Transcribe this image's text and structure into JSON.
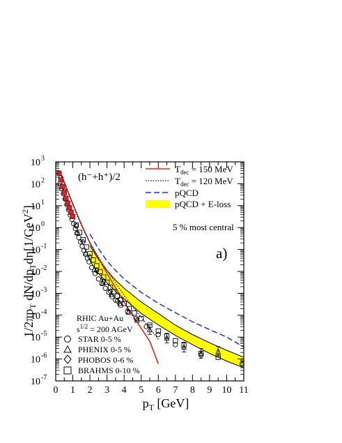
{
  "chart_data": {
    "type": "scatter",
    "title": "",
    "xlabel": "p",
    "xlabel_sub": "T",
    "xlabel_unit": "[GeV]",
    "ylabel": "1/2πp_T dN/dp_Tdη[1/GeV²]",
    "ylabel_parts": [
      "1/2πp",
      "T",
      " dN/dp",
      "T",
      "dη[1/GeV",
      "2",
      "]"
    ],
    "xlim": [
      0,
      11
    ],
    "ylim": [
      1e-07,
      1000
    ],
    "yscale": "log",
    "xticks": [
      "0",
      "1",
      "2",
      "3",
      "4",
      "5",
      "6",
      "7",
      "8",
      "9",
      "10",
      "11"
    ],
    "yticks": [
      {
        "base": "10",
        "exp": "-7"
      },
      {
        "base": "10",
        "exp": "-6"
      },
      {
        "base": "10",
        "exp": "-5"
      },
      {
        "base": "10",
        "exp": "-4"
      },
      {
        "base": "10",
        "exp": "-3"
      },
      {
        "base": "10",
        "exp": "-2"
      },
      {
        "base": "10",
        "exp": "-1"
      },
      {
        "base": "10",
        "exp": "0"
      },
      {
        "base": "10",
        "exp": "1"
      },
      {
        "base": "10",
        "exp": "2"
      },
      {
        "base": "10",
        "exp": "3"
      }
    ],
    "annotations": {
      "particle": "(h⁻+h⁺)/2",
      "centrality": "5 % most central",
      "panel": "a)",
      "system_line1": "RHIC Au+Au",
      "system_line2_pre": "s",
      "system_line2_sup": "1/2",
      "system_line2_post": " = 200 AGeV"
    },
    "legend_top": [
      {
        "label_pre": "T",
        "label_sub": "dec",
        "label_post": " = 150 MeV",
        "style": "solid",
        "color": "#e8231e"
      },
      {
        "label_pre": "T",
        "label_sub": "dec",
        "label_post": " = 120 MeV",
        "style": "dotted",
        "color": "#000000"
      },
      {
        "label_pre": "pQCD",
        "label_sub": "",
        "label_post": "",
        "style": "dashed",
        "color": "#2130d8"
      },
      {
        "label_pre": "pQCD + E-loss",
        "label_sub": "",
        "label_post": "",
        "style": "band",
        "color": "#ffff00"
      }
    ],
    "legend_bottom": [
      {
        "label": "STAR 0-5 %",
        "marker": "circle"
      },
      {
        "label": "PHENIX 0-5 %",
        "marker": "triangle"
      },
      {
        "label": "PHOBOS 0-6 %",
        "marker": "diamond"
      },
      {
        "label": "BRAHMS 0-10 %",
        "marker": "square"
      }
    ],
    "series": [
      {
        "name": "T_dec = 150 MeV",
        "kind": "line",
        "color": "#e8231e",
        "x": [
          0.2,
          0.5,
          1.0,
          1.5,
          2.0,
          2.5,
          3.0,
          3.5,
          4.0,
          4.5,
          5.0,
          5.5,
          6.0
        ],
        "y": [
          400,
          120,
          12,
          1.4,
          0.2,
          0.04,
          0.008,
          0.0018,
          0.0004,
          0.0001,
          2.5e-05,
          6.5e-06,
          6e-07
        ]
      },
      {
        "name": "T_dec = 120 MeV",
        "kind": "dotted",
        "color": "#000000",
        "x": [
          0.2,
          0.5,
          1.0,
          1.5,
          2.0,
          2.5,
          3.0,
          3.5,
          4.0,
          4.5,
          5.0,
          5.5,
          6.0
        ],
        "y": [
          380,
          110,
          11,
          1.3,
          0.2,
          0.045,
          0.011,
          0.003,
          0.0008,
          0.00025,
          8e-05,
          2.5e-05,
          8e-06
        ]
      },
      {
        "name": "pQCD",
        "kind": "dashed",
        "color": "#2130d8",
        "x": [
          2.0,
          2.5,
          3.0,
          3.5,
          4.0,
          5.0,
          6.0,
          7.0,
          8.0,
          9.0,
          10.0,
          11.0
        ],
        "y": [
          0.5,
          0.11,
          0.03,
          0.011,
          0.0045,
          0.0011,
          0.00035,
          0.00013,
          5e-05,
          2.2e-05,
          1e-05,
          3.5e-06
        ]
      },
      {
        "name": "pQCD + E-loss",
        "kind": "band",
        "color": "#ffff00",
        "x": [
          2.0,
          2.5,
          3.0,
          3.5,
          4.0,
          5.0,
          6.0,
          7.0,
          8.0,
          9.0,
          10.0,
          11.0
        ],
        "y_low": [
          0.03,
          0.008,
          0.003,
          0.0012,
          0.00055,
          0.00012,
          3.6e-05,
          1.2e-05,
          4.5e-06,
          1.8e-06,
          8e-07,
          4e-07
        ],
        "y_high": [
          0.15,
          0.035,
          0.011,
          0.004,
          0.0017,
          0.0004,
          0.00012,
          3.5e-05,
          1.3e-05,
          5.5e-06,
          2.5e-06,
          1.2e-06
        ]
      },
      {
        "name": "STAR 0-5 %",
        "kind": "marker",
        "marker": "circle",
        "x": [
          0.25,
          0.35,
          0.45,
          0.55,
          0.65,
          0.75,
          0.85,
          0.95,
          1.05,
          1.15,
          1.25,
          1.35,
          1.45,
          1.55,
          1.65,
          1.75,
          1.85,
          1.95,
          2.1,
          2.3,
          2.5,
          2.7,
          2.9,
          3.1,
          3.3,
          3.5,
          3.8,
          4.2,
          4.7,
          5.3,
          6.0,
          7.0,
          8.5,
          10.9
        ],
        "y": [
          100,
          60,
          35,
          20,
          11,
          6.5,
          3.8,
          2.4,
          1.5,
          0.9,
          0.55,
          0.35,
          0.22,
          0.14,
          0.09,
          0.06,
          0.04,
          0.027,
          0.015,
          0.008,
          0.0045,
          0.0028,
          0.0017,
          0.0011,
          0.0007,
          0.00048,
          0.00028,
          0.00015,
          7e-05,
          3e-05,
          1.3e-05,
          4.5e-06,
          1.5e-06,
          6e-07
        ]
      },
      {
        "name": "PHENIX 0-5 %",
        "kind": "marker",
        "marker": "triangle",
        "x": [
          1.25,
          1.75,
          2.25,
          2.75,
          3.25,
          3.75,
          4.25,
          4.75,
          5.5,
          6.5,
          7.5,
          8.5,
          9.5
        ],
        "y": [
          0.6,
          0.07,
          0.012,
          0.003,
          0.0009,
          0.00035,
          0.00014,
          6e-05,
          2.2e-05,
          9e-06,
          3.5e-06,
          1.8e-06,
          2.2e-06
        ]
      },
      {
        "name": "PHOBOS 0-6 %",
        "kind": "marker",
        "marker": "diamond",
        "x": [
          0.3,
          0.5,
          0.7,
          0.9,
          1.2,
          1.6,
          2.0,
          2.4,
          2.8,
          3.2,
          3.6
        ],
        "y": [
          200,
          50,
          14,
          4.5,
          1.2,
          0.22,
          0.045,
          0.011,
          0.0035,
          0.0012,
          0.00045
        ]
      },
      {
        "name": "BRAHMS 0-10 %",
        "kind": "marker",
        "marker": "square",
        "x": [
          0.2,
          0.3,
          0.4,
          0.5,
          0.6,
          0.7,
          0.8,
          0.9,
          1.0,
          1.2,
          1.4,
          1.6,
          1.8,
          2.0,
          2.2,
          2.4,
          2.6,
          2.8,
          3.0,
          3.2,
          3.4,
          3.6,
          3.8,
          4.0,
          4.3,
          4.6,
          5.0,
          5.5,
          6.0,
          6.5,
          7.0,
          7.5,
          8.5,
          9.5
        ],
        "y": [
          300,
          150,
          75,
          40,
          22,
          13,
          8,
          5,
          3.2,
          1.3,
          0.6,
          0.28,
          0.13,
          0.065,
          0.033,
          0.018,
          0.0098,
          0.0055,
          0.0032,
          0.0019,
          0.0012,
          0.00075,
          0.0005,
          0.00034,
          0.0002,
          0.000125,
          7e-05,
          3.5e-05,
          1.9e-05,
          1.1e-05,
          6.8e-06,
          4.3e-06,
          1.8e-06,
          1.2e-06
        ]
      }
    ],
    "legend_placement": "top-right and bottom-left",
    "grid": false
  }
}
